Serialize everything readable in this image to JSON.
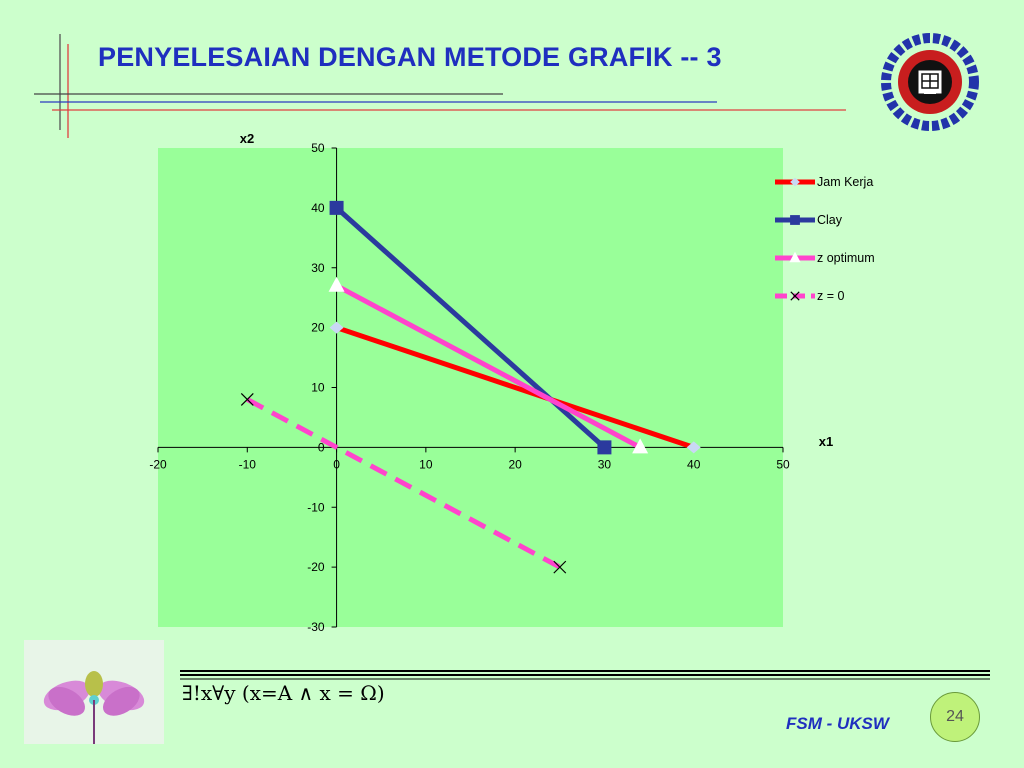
{
  "slide": {
    "title": "PENYELESAIAN DENGAN METODE GRAFIK  -- 3",
    "formula": "∃!x∀y (x=A ∧ x = Ω)",
    "footer": "FSM - UKSW",
    "page_number": "24"
  },
  "colors": {
    "background": "#ccffcc",
    "plot_area": "#99ff99",
    "title": "#1f2fbf",
    "jam_kerja": "#ff0000",
    "clay": "#2b3a9e",
    "z_optimum": "#ff44cc",
    "z_zero": "#ff44cc"
  },
  "chart_data": {
    "type": "line",
    "xlabel": "x1",
    "ylabel": "x2",
    "xlim": [
      -20,
      50
    ],
    "ylim": [
      -30,
      50
    ],
    "x_ticks": [
      -20,
      -10,
      0,
      10,
      20,
      30,
      40,
      50
    ],
    "y_ticks": [
      -30,
      -20,
      -10,
      0,
      10,
      20,
      30,
      40,
      50
    ],
    "grid": false,
    "legend_position": "right",
    "series": [
      {
        "name": "Jam Kerja",
        "marker": "diamond",
        "dash": "solid",
        "x": [
          0,
          40
        ],
        "y": [
          20,
          0
        ]
      },
      {
        "name": "Clay",
        "marker": "square",
        "dash": "solid",
        "x": [
          0,
          30
        ],
        "y": [
          40,
          0
        ]
      },
      {
        "name": "z optimum",
        "marker": "triangle",
        "dash": "solid",
        "x": [
          0,
          34
        ],
        "y": [
          27,
          0
        ]
      },
      {
        "name": "z = 0",
        "marker": "x",
        "dash": "dashed",
        "x": [
          -10,
          25
        ],
        "y": [
          8,
          -20
        ]
      }
    ]
  }
}
